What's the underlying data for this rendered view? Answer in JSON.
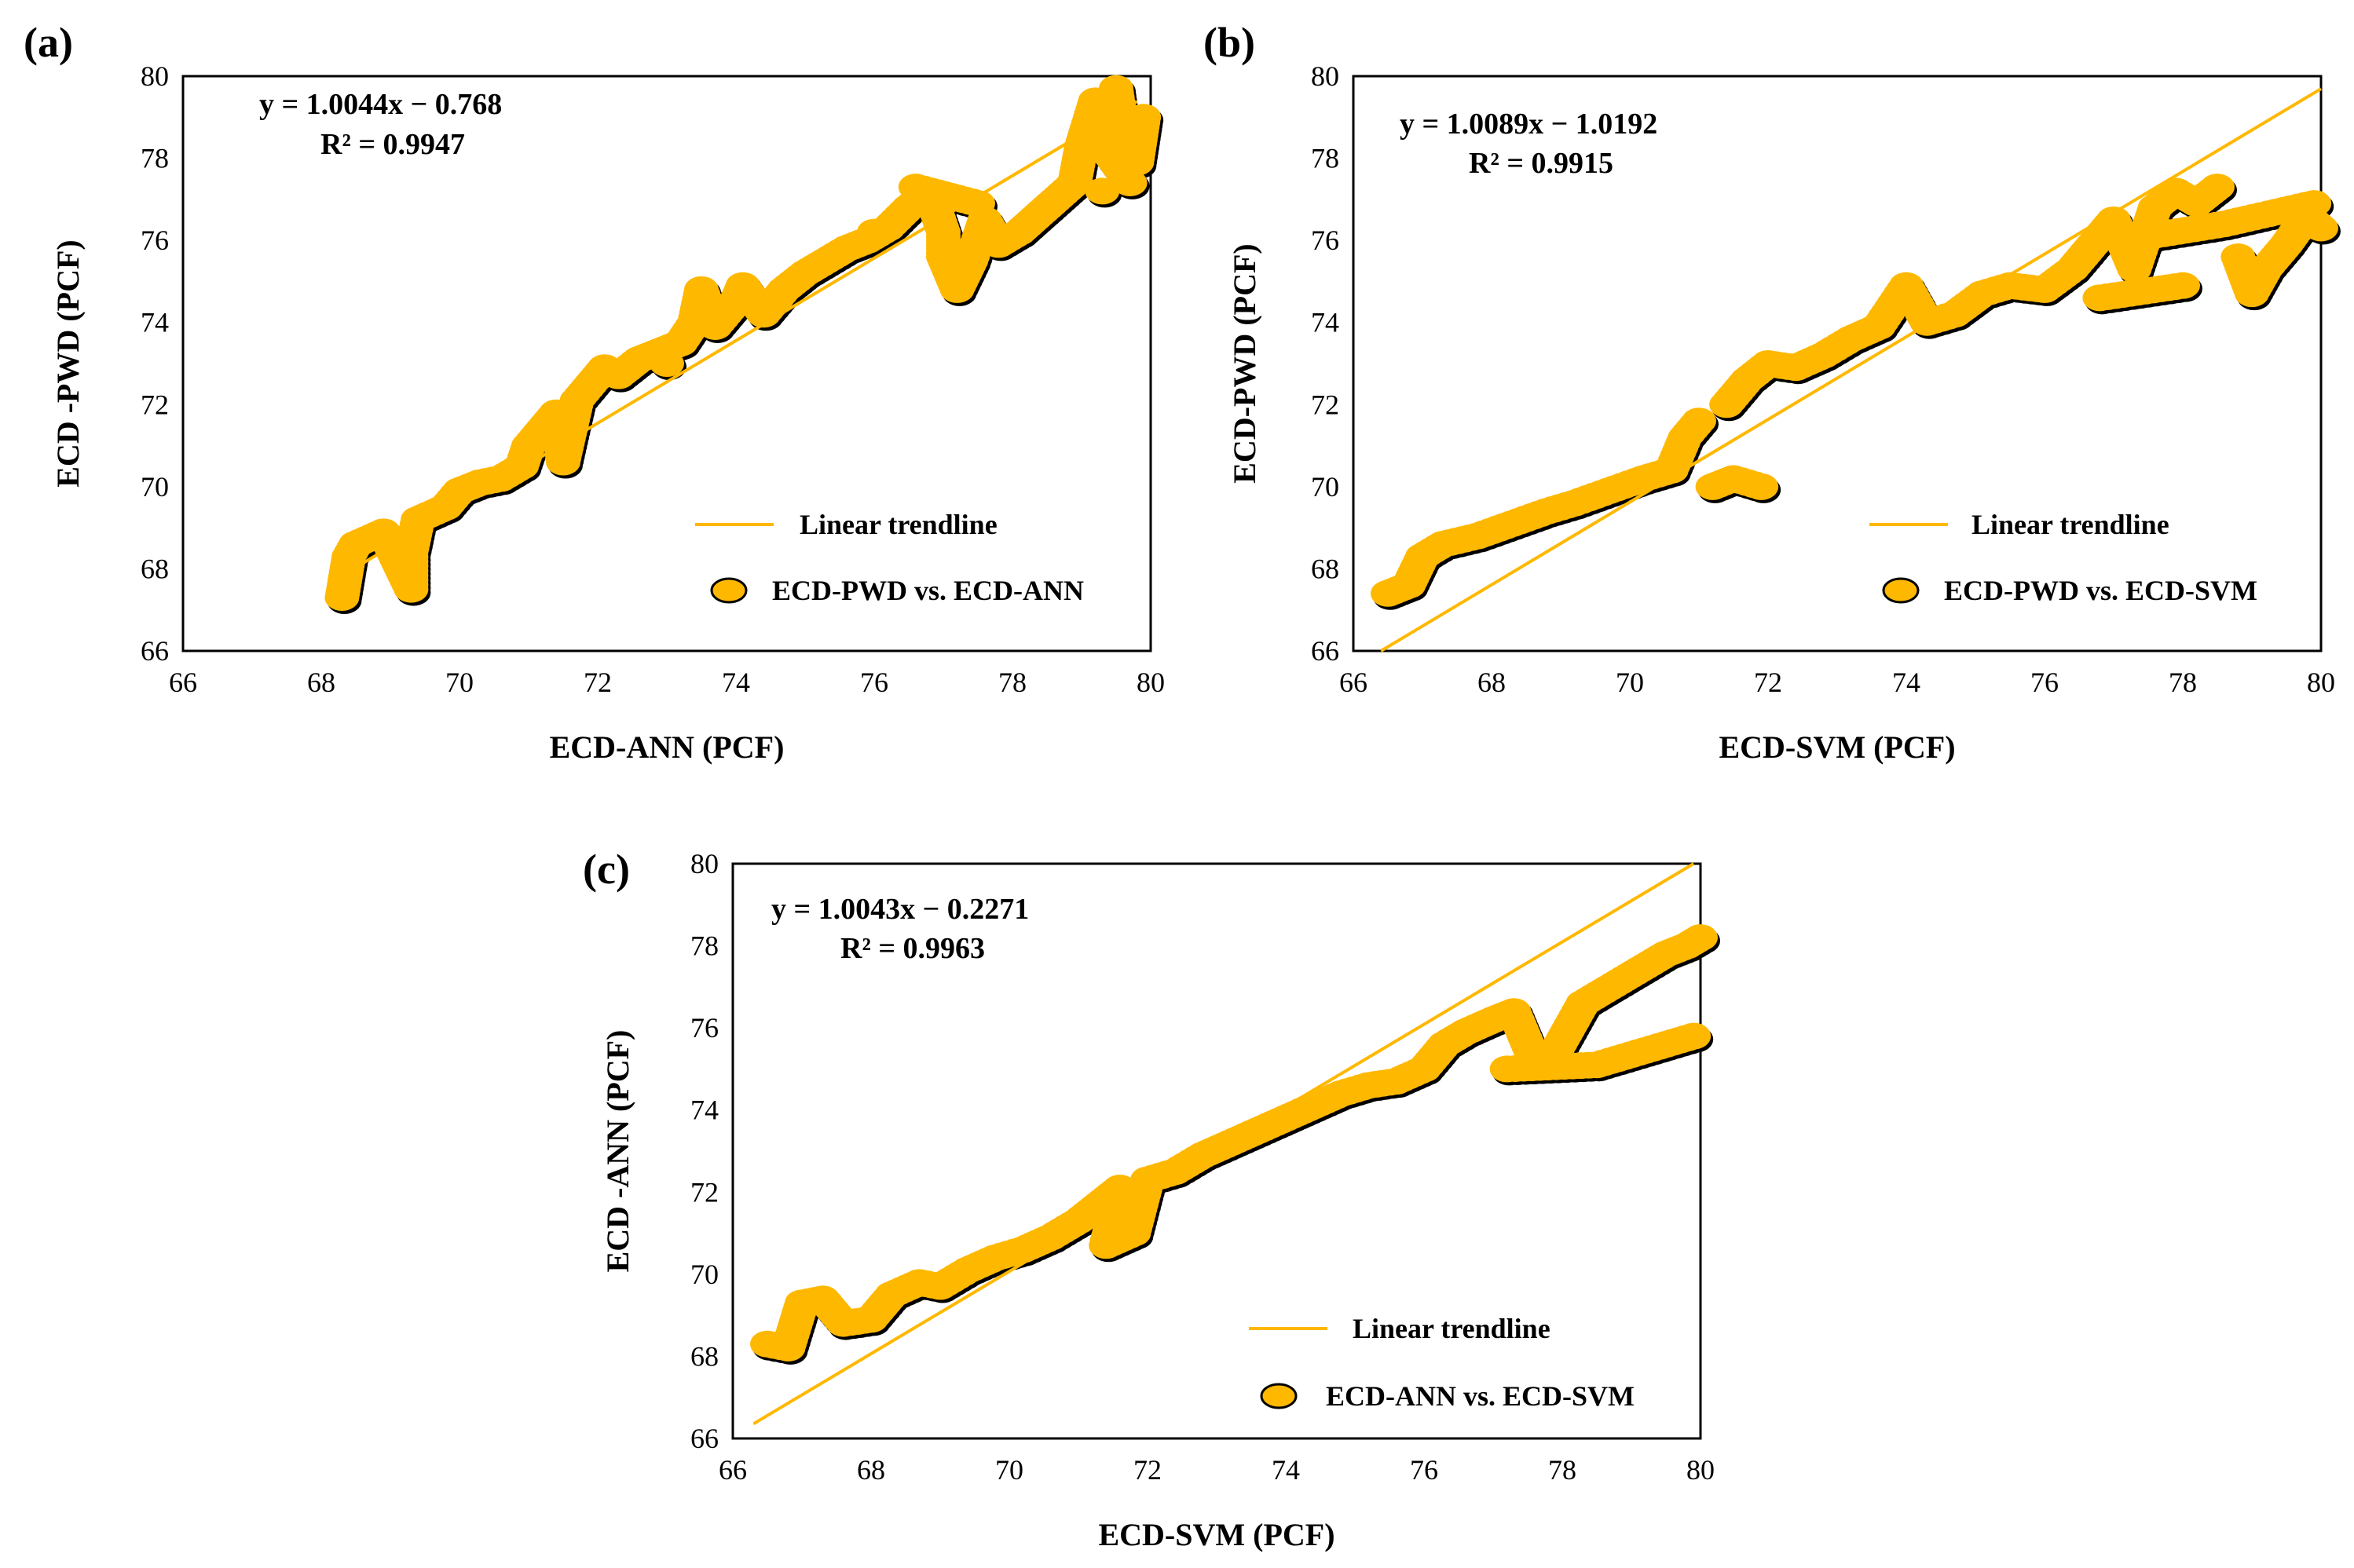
{
  "chart_data": [
    {
      "type": "scatter",
      "panel_label": "(a)",
      "xlabel": "ECD-ANN (PCF)",
      "ylabel": "ECD -PWD (PCF)",
      "xlim": [
        66,
        80
      ],
      "ylim": [
        66,
        80
      ],
      "x_ticks": [
        66,
        68,
        70,
        72,
        74,
        76,
        78,
        80
      ],
      "y_ticks": [
        66,
        68,
        70,
        72,
        74,
        76,
        78,
        80
      ],
      "equation": "y = 1.0044x − 0.768",
      "r2": "R² = 0.9947",
      "legend_trend": "Linear trendline",
      "legend_series": "ECD-PWD vs. ECD-ANN",
      "series": [
        {
          "name": "ECD-PWD vs. ECD-ANN",
          "points": [
            [
              68.3,
              67.3
            ],
            [
              68.35,
              67.8
            ],
            [
              68.4,
              68.3
            ],
            [
              68.5,
              68.6
            ],
            [
              68.9,
              68.9
            ],
            [
              69.3,
              67.5
            ],
            [
              69.3,
              68.4
            ],
            [
              69.4,
              69.2
            ],
            [
              69.8,
              69.5
            ],
            [
              70.0,
              69.9
            ],
            [
              70.3,
              70.1
            ],
            [
              70.6,
              70.2
            ],
            [
              70.9,
              70.5
            ],
            [
              71.0,
              71.0
            ],
            [
              71.2,
              71.4
            ],
            [
              71.4,
              71.8
            ],
            [
              71.5,
              70.6
            ],
            [
              71.7,
              72.1
            ],
            [
              71.9,
              72.5
            ],
            [
              72.1,
              72.9
            ],
            [
              72.3,
              72.7
            ],
            [
              72.6,
              73.1
            ],
            [
              72.9,
              73.3
            ],
            [
              73.2,
              73.5
            ],
            [
              73.4,
              74.0
            ],
            [
              73.5,
              74.8
            ],
            [
              73.7,
              73.9
            ],
            [
              74.0,
              74.5
            ],
            [
              74.1,
              74.9
            ],
            [
              74.4,
              74.2
            ],
            [
              74.7,
              74.8
            ],
            [
              75.0,
              75.2
            ],
            [
              75.3,
              75.5
            ],
            [
              75.6,
              75.8
            ],
            [
              75.9,
              76.0
            ],
            [
              76.2,
              76.3
            ],
            [
              76.5,
              76.8
            ],
            [
              76.8,
              77.2
            ],
            [
              77.0,
              76.2
            ],
            [
              77.0,
              75.6
            ],
            [
              77.2,
              74.8
            ],
            [
              77.4,
              75.5
            ],
            [
              77.6,
              76.5
            ],
            [
              77.8,
              75.9
            ],
            [
              78.1,
              76.2
            ],
            [
              78.5,
              76.8
            ],
            [
              78.9,
              77.4
            ],
            [
              79.0,
              78.3
            ],
            [
              79.2,
              79.4
            ],
            [
              79.3,
              77.2
            ],
            [
              79.5,
              79.7
            ],
            [
              79.6,
              78.5
            ],
            [
              79.8,
              77.9
            ],
            [
              79.9,
              79.0
            ],
            [
              79.1,
              78.8
            ],
            [
              79.7,
              77.4
            ],
            [
              76.6,
              77.3
            ],
            [
              77.5,
              76.9
            ],
            [
              76.0,
              76.2
            ],
            [
              73.0,
              73.0
            ]
          ]
        }
      ],
      "trendline": {
        "slope": 1.0044,
        "intercept": -0.768,
        "x_range": [
          68.2,
          79.8
        ]
      },
      "colors": {
        "marker": "#FFB800",
        "marker_edge": "#000000",
        "trend": "#FFB800"
      }
    },
    {
      "type": "scatter",
      "panel_label": "(b)",
      "xlabel": "ECD-SVM (PCF)",
      "ylabel": "ECD-PWD (PCF)",
      "xlim": [
        66,
        80
      ],
      "ylim": [
        66,
        80
      ],
      "x_ticks": [
        66,
        68,
        70,
        72,
        74,
        76,
        78,
        80
      ],
      "y_ticks": [
        66,
        68,
        70,
        72,
        74,
        76,
        78,
        80
      ],
      "equation": "y = 1.0089x − 1.0192",
      "r2": "R² = 0.9915",
      "legend_trend": "Linear trendline",
      "legend_series": "ECD-PWD vs. ECD-SVM",
      "series": [
        {
          "name": "ECD-PWD vs. ECD-SVM",
          "points": [
            [
              66.5,
              67.4
            ],
            [
              66.8,
              67.6
            ],
            [
              67.0,
              68.3
            ],
            [
              67.3,
              68.6
            ],
            [
              67.8,
              68.8
            ],
            [
              68.3,
              69.1
            ],
            [
              68.8,
              69.4
            ],
            [
              69.2,
              69.6
            ],
            [
              69.7,
              69.9
            ],
            [
              70.2,
              70.2
            ],
            [
              70.6,
              70.4
            ],
            [
              70.8,
              71.2
            ],
            [
              71.0,
              71.6
            ],
            [
              71.2,
              70.0
            ],
            [
              71.5,
              70.2
            ],
            [
              71.9,
              70.0
            ],
            [
              71.4,
              72.0
            ],
            [
              71.7,
              72.6
            ],
            [
              72.0,
              73.0
            ],
            [
              72.4,
              72.9
            ],
            [
              72.8,
              73.2
            ],
            [
              73.2,
              73.6
            ],
            [
              73.6,
              73.9
            ],
            [
              74.0,
              74.9
            ],
            [
              74.3,
              74.0
            ],
            [
              74.7,
              74.2
            ],
            [
              75.1,
              74.7
            ],
            [
              75.5,
              74.9
            ],
            [
              76.0,
              74.8
            ],
            [
              76.4,
              75.3
            ],
            [
              76.7,
              75.9
            ],
            [
              77.0,
              76.5
            ],
            [
              77.3,
              75.3
            ],
            [
              77.6,
              76.8
            ],
            [
              77.9,
              77.2
            ],
            [
              78.2,
              76.9
            ],
            [
              78.5,
              77.3
            ],
            [
              78.8,
              75.6
            ],
            [
              79.0,
              74.7
            ],
            [
              79.2,
              75.3
            ],
            [
              79.5,
              75.9
            ],
            [
              79.8,
              76.6
            ],
            [
              80.0,
              76.3
            ],
            [
              78.0,
              74.9
            ],
            [
              76.8,
              74.6
            ],
            [
              77.5,
              76.1
            ],
            [
              78.6,
              76.4
            ],
            [
              79.9,
              76.9
            ]
          ]
        }
      ],
      "trendline": {
        "slope": 1.0089,
        "intercept": -1.0192,
        "x_range": [
          66.4,
          80.0
        ]
      },
      "colors": {
        "marker": "#FFB800",
        "marker_edge": "#000000",
        "trend": "#FFB800"
      }
    },
    {
      "type": "scatter",
      "panel_label": "(c)",
      "xlabel": "ECD-SVM (PCF)",
      "ylabel": "ECD -ANN (PCF)",
      "xlim": [
        66,
        80
      ],
      "ylim": [
        66,
        80
      ],
      "x_ticks": [
        66,
        68,
        70,
        72,
        74,
        76,
        78,
        80
      ],
      "y_ticks": [
        66,
        68,
        70,
        72,
        74,
        76,
        78,
        80
      ],
      "equation": "y = 1.0043x − 0.2271",
      "r2": "R² = 0.9963",
      "legend_trend": "Linear trendline",
      "legend_series": "ECD-ANN vs. ECD-SVM",
      "series": [
        {
          "name": "ECD-ANN vs. ECD-SVM",
          "points": [
            [
              66.5,
              68.3
            ],
            [
              66.8,
              68.2
            ],
            [
              67.0,
              69.3
            ],
            [
              67.3,
              69.4
            ],
            [
              67.6,
              68.8
            ],
            [
              68.0,
              68.9
            ],
            [
              68.3,
              69.5
            ],
            [
              68.7,
              69.8
            ],
            [
              69.0,
              69.7
            ],
            [
              69.4,
              70.1
            ],
            [
              69.8,
              70.4
            ],
            [
              70.2,
              70.6
            ],
            [
              70.6,
              70.9
            ],
            [
              71.0,
              71.3
            ],
            [
              71.3,
              71.7
            ],
            [
              71.6,
              72.1
            ],
            [
              71.4,
              70.7
            ],
            [
              71.8,
              71.0
            ],
            [
              72.0,
              72.3
            ],
            [
              72.4,
              72.5
            ],
            [
              72.8,
              72.9
            ],
            [
              73.2,
              73.2
            ],
            [
              73.6,
              73.5
            ],
            [
              74.0,
              73.8
            ],
            [
              74.4,
              74.1
            ],
            [
              74.8,
              74.4
            ],
            [
              75.2,
              74.6
            ],
            [
              75.6,
              74.7
            ],
            [
              76.0,
              75.0
            ],
            [
              76.3,
              75.6
            ],
            [
              76.6,
              75.9
            ],
            [
              77.0,
              76.2
            ],
            [
              77.3,
              76.4
            ],
            [
              77.6,
              75.2
            ],
            [
              77.9,
              75.4
            ],
            [
              78.3,
              76.6
            ],
            [
              78.6,
              76.9
            ],
            [
              78.9,
              77.2
            ],
            [
              79.2,
              77.5
            ],
            [
              79.5,
              77.8
            ],
            [
              79.8,
              78.0
            ],
            [
              80.0,
              78.2
            ],
            [
              79.9,
              75.8
            ],
            [
              78.5,
              75.1
            ],
            [
              77.2,
              75.0
            ]
          ]
        }
      ],
      "trendline": {
        "slope": 1.0043,
        "intercept": -0.2271,
        "x_range": [
          66.3,
          79.9
        ]
      },
      "colors": {
        "marker": "#FFB800",
        "marker_edge": "#000000",
        "trend": "#FFB800"
      }
    }
  ]
}
